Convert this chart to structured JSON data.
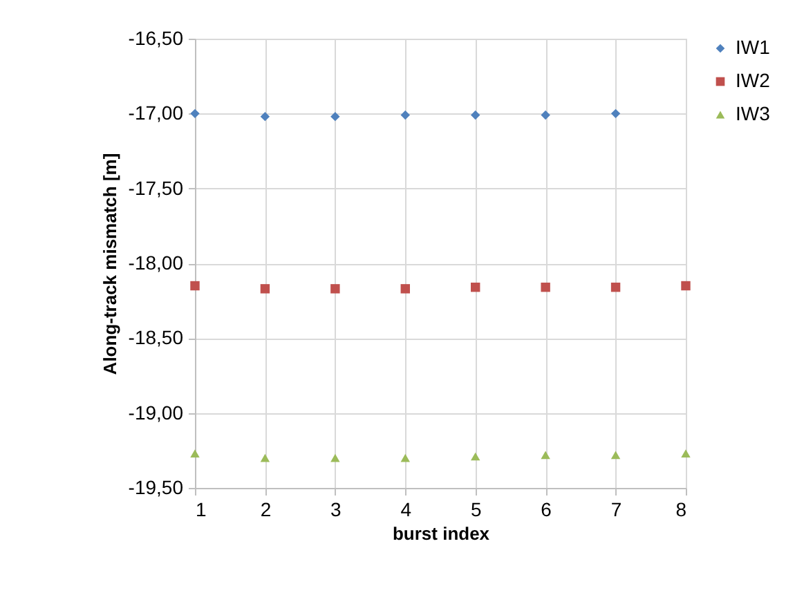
{
  "chart_data": {
    "type": "scatter",
    "xlabel": "burst index",
    "ylabel": "Along-track mismatch [m]",
    "x": [
      1,
      2,
      3,
      4,
      5,
      6,
      7,
      8
    ],
    "series": [
      {
        "name": "IW1",
        "color": "#4f81bd",
        "marker": "diamond",
        "values": [
          -17.0,
          -17.02,
          -17.02,
          -17.01,
          -17.01,
          -17.01,
          -17.0,
          null
        ]
      },
      {
        "name": "IW2",
        "color": "#c0504d",
        "marker": "square",
        "values": [
          -18.15,
          -18.17,
          -18.17,
          -18.17,
          -18.16,
          -18.16,
          -18.16,
          -18.15
        ]
      },
      {
        "name": "IW3",
        "color": "#9bbb59",
        "marker": "triangle",
        "values": [
          -19.27,
          -19.3,
          -19.3,
          -19.3,
          -19.29,
          -19.28,
          -19.28,
          -19.27
        ]
      }
    ],
    "xlim": [
      1,
      8
    ],
    "xticks": [
      1,
      2,
      3,
      4,
      5,
      6,
      7,
      8
    ],
    "ylim": [
      -19.5,
      -16.5
    ],
    "yticks": [
      {
        "value": -19.5,
        "label": "-19,50"
      },
      {
        "value": -19,
        "label": "-19,00"
      },
      {
        "value": -18.5,
        "label": "-18,50"
      },
      {
        "value": -18,
        "label": "-18,00"
      },
      {
        "value": -17.5,
        "label": "-17,50"
      },
      {
        "value": -17,
        "label": "-17,00"
      },
      {
        "value": -16.5,
        "label": "-16,50"
      }
    ],
    "grid": true,
    "legend": "right"
  }
}
